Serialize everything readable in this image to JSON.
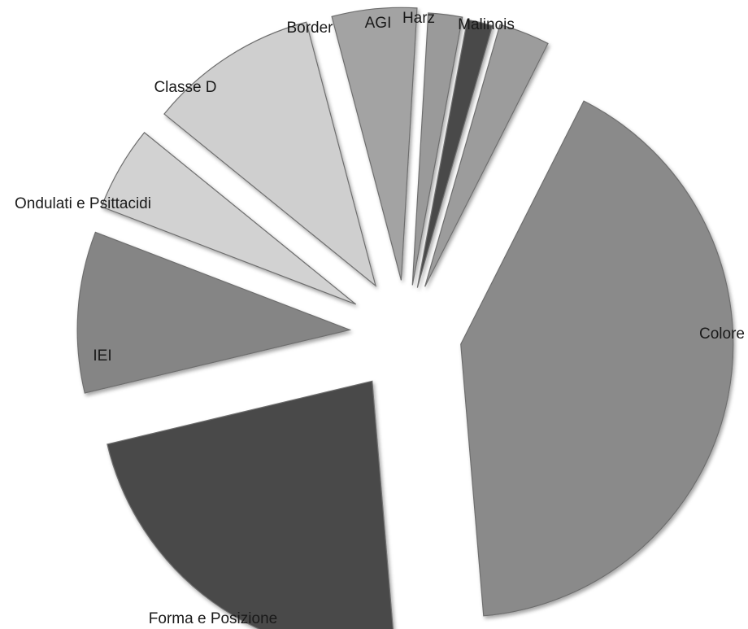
{
  "chart_data": {
    "type": "pie",
    "title": "",
    "start_angle_deg": 16,
    "direction": "clockwise",
    "exploded": true,
    "slices": [
      {
        "label": "Malinois",
        "value": 3.0,
        "color": "#9c9c9c"
      },
      {
        "label": "Colore",
        "value": 41.0,
        "color": "#8a8a8a"
      },
      {
        "label": "Forma e Posizione",
        "value": 22.5,
        "color": "#4a4a4a"
      },
      {
        "label": "IEI",
        "value": 9.5,
        "color": "#858585"
      },
      {
        "label": "Ondulati e Psittacidi",
        "value": 5.0,
        "color": "#d2d2d2"
      },
      {
        "label": "Classe D",
        "value": 10.0,
        "color": "#cfcfcf"
      },
      {
        "label": "Border",
        "value": 5.0,
        "color": "#a3a3a3"
      },
      {
        "label": "AGI",
        "value": 2.0,
        "color": "#9a9a9a"
      },
      {
        "label": "Harz",
        "value": 1.5,
        "color": "#4a4a4a"
      }
    ]
  }
}
